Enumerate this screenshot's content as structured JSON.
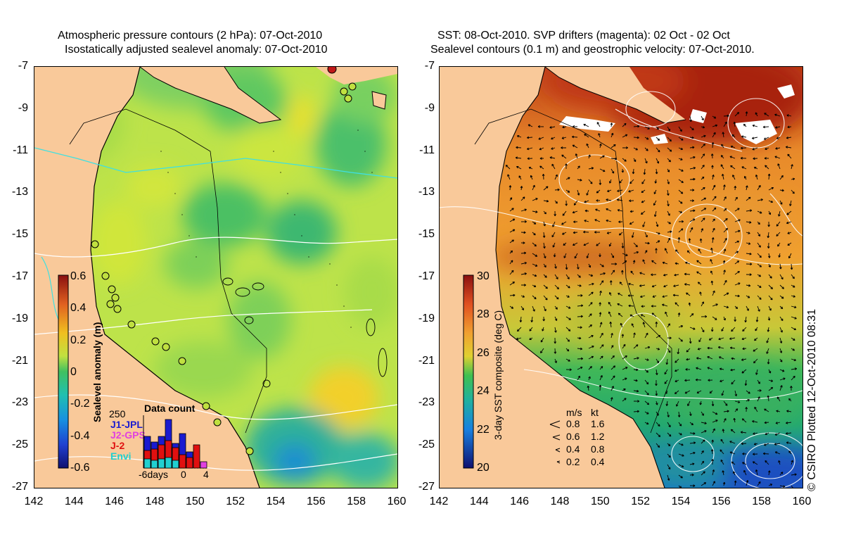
{
  "left_panel": {
    "title_line1": "Atmospheric pressure contours (2 hPa): 07-Oct-2010",
    "title_line2": "Isostatically adjusted sealevel anomaly: 07-Oct-2010",
    "colorbar": {
      "label": "Sealevel anomaly (m)",
      "ticks": [
        "0.6",
        "0.4",
        "0.2",
        "0",
        "-0.2",
        "-0.4",
        "-0.6"
      ],
      "range": [
        -0.6,
        0.6
      ]
    },
    "inset": {
      "title": "Data count",
      "y_max_label": "250",
      "x_labels": [
        "-6days",
        "0",
        "4"
      ],
      "legend": [
        {
          "name": "J1-JPL",
          "color": "#1a1ad0"
        },
        {
          "name": "J2-GPS",
          "color": "#e040e0"
        },
        {
          "name": "J-2",
          "color": "#e01010"
        },
        {
          "name": "Envi",
          "color": "#20d0d0"
        }
      ]
    }
  },
  "right_panel": {
    "title_line1": "SST: 08-Oct-2010. SVP drifters (magenta): 02 Oct - 02 Oct",
    "title_line2": "Sealevel contours (0.1 m) and geostrophic velocity: 07-Oct-2010.",
    "colorbar": {
      "label": "3-day SST composite (deg C)",
      "ticks": [
        "30",
        "28",
        "26",
        "24",
        "22",
        "20"
      ],
      "range": [
        20,
        30
      ]
    },
    "velocity_legend": {
      "header_ms": "m/s",
      "header_kt": "kt",
      "rows": [
        {
          "ms": "0.8",
          "kt": "1.6"
        },
        {
          "ms": "0.6",
          "kt": "1.2"
        },
        {
          "ms": "0.4",
          "kt": "0.8"
        },
        {
          "ms": "0.2",
          "kt": "0.4"
        }
      ]
    }
  },
  "axes": {
    "y_labels": [
      "-7",
      "-9",
      "-11",
      "-13",
      "-15",
      "-17",
      "-19",
      "-21",
      "-23",
      "-25",
      "-27"
    ],
    "x_labels": [
      "142",
      "144",
      "146",
      "148",
      "150",
      "152",
      "154",
      "156",
      "158",
      "160"
    ],
    "lon_range": [
      142,
      160
    ],
    "lat_range": [
      -27,
      -7
    ]
  },
  "credit": "© CSIRO Plotted 12-Oct-2010 08:31",
  "colors": {
    "land": "#f9c99a",
    "sla_base": "#bde34a",
    "sst_warm": "#f0a030",
    "sst_hot": "#b02818",
    "sst_cool": "#22b060"
  }
}
